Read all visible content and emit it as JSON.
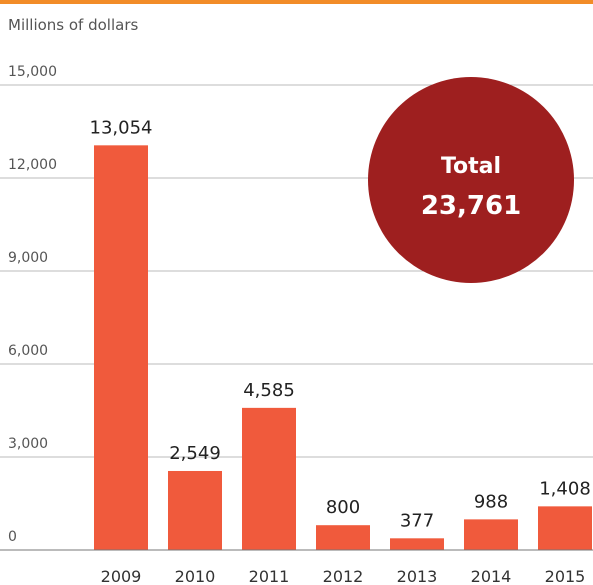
{
  "unit_label": "Millions of dollars",
  "colors": {
    "top_rule": "#f28c28",
    "bar": "#f05a3c",
    "circle": "#9e1f1f",
    "grid": "#bbbbbb",
    "axis": "#777777"
  },
  "total": {
    "label": "Total",
    "value": "23,761"
  },
  "chart_data": {
    "type": "bar",
    "categories": [
      "2009",
      "2010",
      "2011",
      "2012",
      "2013",
      "2014",
      "2015"
    ],
    "values": [
      13054,
      2549,
      4585,
      800,
      377,
      988,
      1408
    ],
    "value_labels": [
      "13,054",
      "2,549",
      "4,585",
      "800",
      "377",
      "988",
      "1,408"
    ],
    "ylabel": "Millions of dollars",
    "ylim": [
      0,
      15000
    ],
    "yticks": [
      0,
      3000,
      6000,
      9000,
      12000,
      15000
    ],
    "ytick_labels": [
      "0",
      "3,000",
      "6,000",
      "9,000",
      "12,000",
      "15,000"
    ],
    "grid": true
  }
}
